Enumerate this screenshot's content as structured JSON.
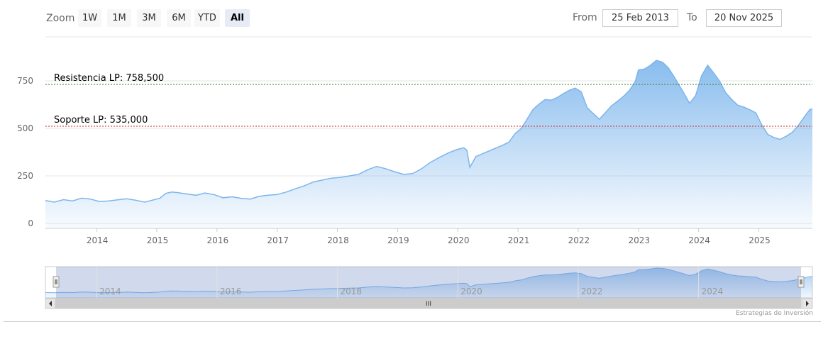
{
  "zoom": {
    "label": "Zoom",
    "buttons": [
      {
        "label": "1W",
        "active": false
      },
      {
        "label": "1M",
        "active": false
      },
      {
        "label": "3M",
        "active": false
      },
      {
        "label": "6M",
        "active": false
      },
      {
        "label": "YTD",
        "active": false
      },
      {
        "label": "All",
        "active": true
      }
    ]
  },
  "range": {
    "from_label": "From",
    "from_value": "25 Feb 2013",
    "to_label": "To",
    "to_value": "20 Nov 2025"
  },
  "credits": "Estrategias de Inversión",
  "navigator": {
    "scrollbar_grip": "III",
    "labels": [
      "2014",
      "2016",
      "2018",
      "2020",
      "2022",
      "2024"
    ]
  },
  "colors": {
    "line": "#7cb5ec",
    "resistance": "#2e7d32",
    "support": "#c62828",
    "grid": "#e6e6e6"
  },
  "chart_data": {
    "type": "area",
    "title": "",
    "xlabel": "",
    "ylabel": "",
    "xlim": [
      2013.15,
      2025.89
    ],
    "ylim": [
      0,
      900
    ],
    "yticks": [
      0,
      250,
      500,
      750
    ],
    "ytick_labels": [
      "0",
      "250",
      "500",
      "750"
    ],
    "xticks": [
      2014,
      2015,
      2016,
      2017,
      2018,
      2019,
      2020,
      2021,
      2022,
      2023,
      2024,
      2025
    ],
    "xtick_labels": [
      "2014",
      "2015",
      "2016",
      "2017",
      "2018",
      "2019",
      "2020",
      "2021",
      "2022",
      "2023",
      "2024",
      "2025"
    ],
    "plot_lines": [
      {
        "label": "Resistencia LP: 758,500",
        "value": 758.5,
        "color": "#2e7d32",
        "style": "dashed"
      },
      {
        "label": "Soporte LP: 535,000",
        "value": 535,
        "color": "#c62828",
        "style": "dashed"
      }
    ],
    "series": [
      {
        "name": "",
        "x": [
          2013.15,
          2013.3,
          2013.45,
          2013.6,
          2013.75,
          2013.9,
          2014.05,
          2014.2,
          2014.35,
          2014.5,
          2014.65,
          2014.8,
          2014.9,
          2015.05,
          2015.15,
          2015.25,
          2015.35,
          2015.5,
          2015.65,
          2015.8,
          2015.95,
          2016.1,
          2016.25,
          2016.4,
          2016.55,
          2016.7,
          2016.85,
          2017.0,
          2017.15,
          2017.3,
          2017.45,
          2017.6,
          2017.75,
          2017.9,
          2018.05,
          2018.2,
          2018.35,
          2018.5,
          2018.65,
          2018.8,
          2018.95,
          2019.1,
          2019.25,
          2019.4,
          2019.55,
          2019.7,
          2019.85,
          2020.0,
          2020.1,
          2020.15,
          2020.2,
          2020.3,
          2020.45,
          2020.6,
          2020.75,
          2020.85,
          2020.95,
          2021.05,
          2021.15,
          2021.25,
          2021.35,
          2021.45,
          2021.55,
          2021.65,
          2021.75,
          2021.85,
          2021.95,
          2022.05,
          2022.15,
          2022.25,
          2022.35,
          2022.45,
          2022.55,
          2022.65,
          2022.75,
          2022.85,
          2022.95,
          2023.0,
          2023.1,
          2023.2,
          2023.3,
          2023.4,
          2023.5,
          2023.6,
          2023.75,
          2023.85,
          2023.95,
          2024.05,
          2024.15,
          2024.25,
          2024.35,
          2024.45,
          2024.55,
          2024.65,
          2024.75,
          2024.85,
          2024.95,
          2025.05,
          2025.15,
          2025.25,
          2025.35,
          2025.45,
          2025.55,
          2025.65,
          2025.75,
          2025.85,
          2025.89
        ],
        "y": [
          120,
          112,
          125,
          118,
          133,
          128,
          115,
          118,
          124,
          130,
          122,
          112,
          120,
          132,
          158,
          165,
          162,
          155,
          148,
          160,
          152,
          135,
          140,
          132,
          128,
          142,
          148,
          152,
          165,
          182,
          198,
          218,
          228,
          238,
          242,
          250,
          258,
          282,
          300,
          288,
          272,
          258,
          262,
          288,
          322,
          348,
          372,
          390,
          398,
          385,
          295,
          352,
          372,
          392,
          412,
          428,
          472,
          498,
          548,
          600,
          628,
          652,
          648,
          662,
          682,
          700,
          712,
          692,
          608,
          578,
          548,
          582,
          618,
          642,
          668,
          700,
          748,
          808,
          812,
          832,
          858,
          848,
          818,
          768,
          688,
          632,
          672,
          778,
          832,
          792,
          748,
          688,
          652,
          622,
          612,
          598,
          582,
          518,
          468,
          452,
          442,
          458,
          478,
          512,
          558,
          600,
          602
        ]
      }
    ]
  }
}
